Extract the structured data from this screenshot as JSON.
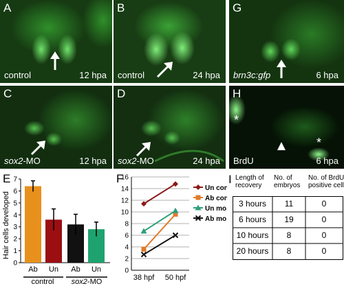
{
  "panels": {
    "A": {
      "letter": "A",
      "left_caption": "control",
      "right_caption": "12 hpa"
    },
    "B": {
      "letter": "B",
      "left_caption": "control",
      "right_caption": "24 hpa"
    },
    "C": {
      "letter": "C",
      "left_caption_gene": "sox2",
      "left_caption_suffix": "-MO",
      "right_caption": "12 hpa"
    },
    "D": {
      "letter": "D",
      "left_caption_gene": "sox2",
      "left_caption_suffix": "-MO",
      "right_caption": "24 hpa"
    },
    "G": {
      "letter": "G",
      "left_caption": "brn3c:gfp",
      "right_caption": "6 hpa"
    },
    "H": {
      "letter": "H",
      "left_caption": "BrdU",
      "right_caption": "6 hpa",
      "asterisk": "*"
    }
  },
  "panel_E": {
    "letter": "E",
    "chart_data": {
      "type": "bar",
      "ylabel": "Hair cells developed",
      "ylim": [
        0,
        7
      ],
      "yticks": [
        0,
        1,
        2,
        3,
        4,
        5,
        6,
        7
      ],
      "categories": [
        "Ab",
        "Un",
        "Ab",
        "Un"
      ],
      "values": [
        6.4,
        3.6,
        3.2,
        2.8
      ],
      "errors": [
        0.45,
        0.9,
        0.85,
        0.6
      ],
      "colors": [
        "#e8901c",
        "#9b0e12",
        "#111111",
        "#1ea370"
      ],
      "groups": [
        {
          "label": "control",
          "label_gene": "",
          "label_suffix": ""
        },
        {
          "label": "",
          "label_gene": "sox2",
          "label_suffix": "-MO"
        }
      ]
    }
  },
  "panel_F": {
    "letter": "F",
    "chart_data": {
      "type": "line",
      "x": [
        "38 hpf",
        "50 hpf"
      ],
      "ylim": [
        0,
        16
      ],
      "yticks": [
        0,
        2,
        4,
        6,
        8,
        10,
        12,
        14,
        16
      ],
      "series": [
        {
          "name": "Un con",
          "values": [
            11.4,
            14.8
          ],
          "color": "#8b1a1a",
          "marker": "diamond"
        },
        {
          "name": "Ab con",
          "values": [
            3.6,
            9.6
          ],
          "color": "#e07b2a",
          "marker": "square"
        },
        {
          "name": "Un mo",
          "values": [
            6.7,
            10.2
          ],
          "color": "#2e9e7a",
          "marker": "triangle"
        },
        {
          "name": "Ab mo",
          "values": [
            2.7,
            6.0
          ],
          "color": "#111111",
          "marker": "x"
        }
      ]
    }
  },
  "panel_I": {
    "letter": "I",
    "headers": [
      "Length of recovery",
      "No. of embryos",
      "No. of BrdU-positive cells"
    ],
    "rows": [
      [
        "3 hours",
        "11",
        "0"
      ],
      [
        "6 hours",
        "19",
        "0"
      ],
      [
        "10 hours",
        "8",
        "0"
      ],
      [
        "20 hours",
        "8",
        "0"
      ]
    ]
  }
}
